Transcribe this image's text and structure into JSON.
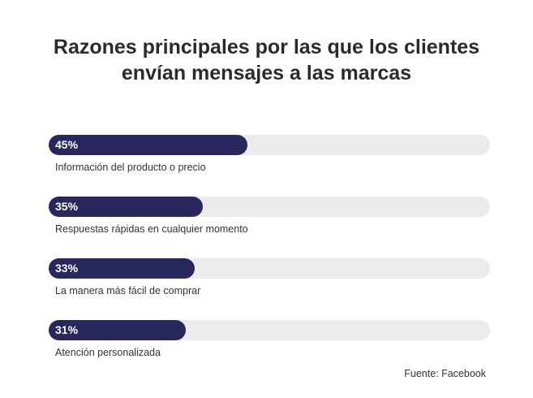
{
  "colors": {
    "bar": "#28285e",
    "track": "#ebebeb",
    "text": "#333333"
  },
  "chart_data": {
    "type": "bar",
    "orientation": "horizontal",
    "title": "Razones principales por las que los clientes envían mensajes a las marcas",
    "title_lines": [
      "Razones principales por las que los clientes",
      "envían mensajes a las marcas"
    ],
    "unit": "%",
    "xlim": [
      0,
      100
    ],
    "categories": [
      "Información del producto o precio",
      "Respuestas rápidas en cualquier momento",
      "La manera más fácil de comprar",
      "Atención personalizada"
    ],
    "values": [
      45,
      35,
      33,
      31
    ],
    "value_labels": [
      "45%",
      "35%",
      "33%",
      "31%"
    ],
    "grid": false,
    "legend": "none",
    "source": "Fuente: Facebook"
  }
}
